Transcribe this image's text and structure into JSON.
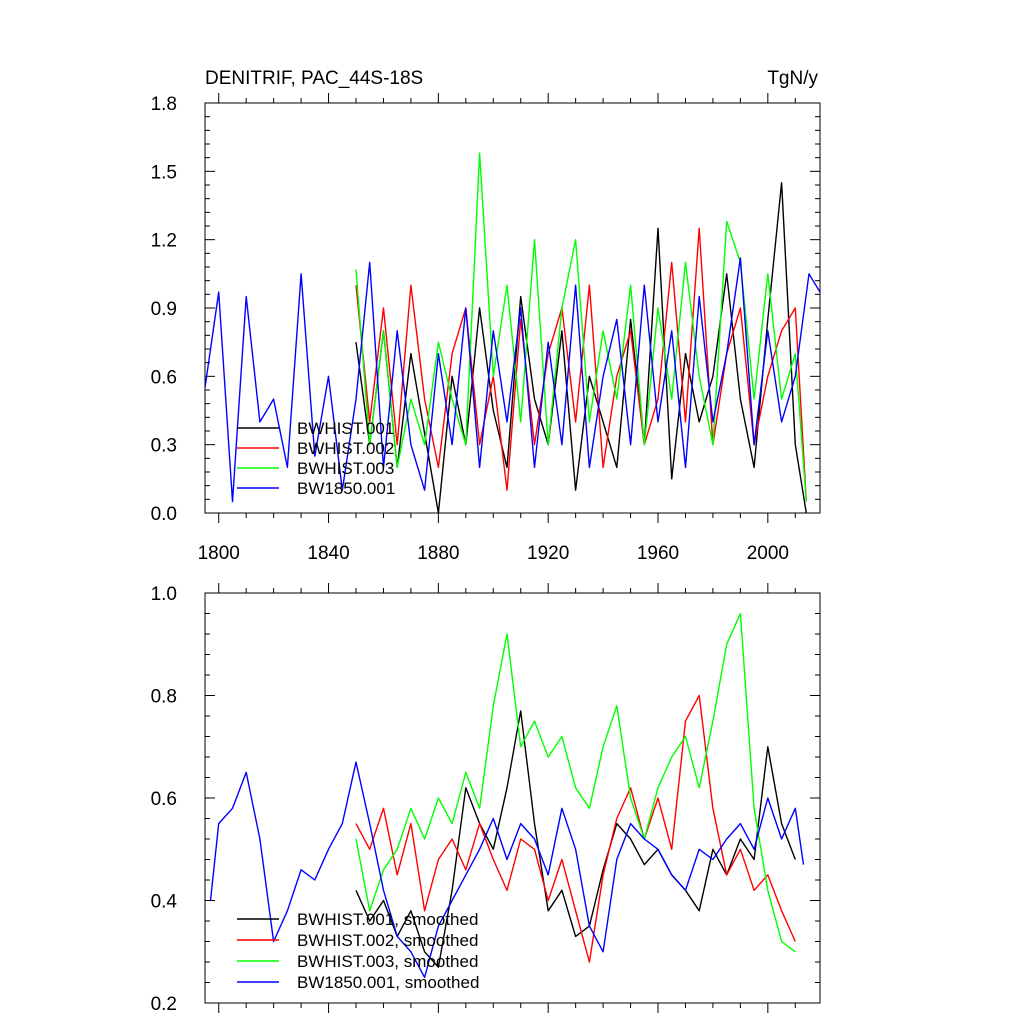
{
  "chart_data": [
    {
      "type": "line",
      "title": "DENITRIF, PAC_44S-18S",
      "units": "TgN/y",
      "xlim": [
        1795,
        2019
      ],
      "ylim": [
        0.0,
        1.8
      ],
      "xticks": [
        1800,
        1840,
        1880,
        1920,
        1960,
        2000
      ],
      "xtick_labels": [
        "1800",
        "1840",
        "1880",
        "1920",
        "1960",
        "2000"
      ],
      "yticks": [
        0.0,
        0.3,
        0.6,
        0.9,
        1.2,
        1.5,
        1.8
      ],
      "ytick_labels": [
        "0.0",
        "0.3",
        "0.6",
        "0.9",
        "1.2",
        "1.5",
        "1.8"
      ],
      "legend_position": "bottom-left",
      "series": [
        {
          "name": "BWHIST.001",
          "color": "#000000",
          "x": [
            1850,
            1855,
            1860,
            1865,
            1870,
            1875,
            1880,
            1885,
            1890,
            1895,
            1900,
            1905,
            1910,
            1915,
            1920,
            1925,
            1930,
            1935,
            1940,
            1945,
            1950,
            1955,
            1960,
            1965,
            1970,
            1975,
            1980,
            1985,
            1990,
            1995,
            2000,
            2005,
            2010,
            2014
          ],
          "values": [
            0.75,
            0.3,
            0.8,
            0.2,
            0.7,
            0.35,
            0.0,
            0.6,
            0.3,
            0.9,
            0.45,
            0.2,
            0.95,
            0.5,
            0.3,
            0.8,
            0.1,
            0.6,
            0.4,
            0.2,
            0.85,
            0.3,
            1.25,
            0.15,
            0.7,
            0.4,
            0.6,
            1.05,
            0.5,
            0.2,
            0.85,
            1.45,
            0.3,
            0.0
          ]
        },
        {
          "name": "BWHIST.002",
          "color": "#ff0000",
          "x": [
            1850,
            1855,
            1860,
            1865,
            1870,
            1875,
            1880,
            1885,
            1890,
            1895,
            1900,
            1905,
            1910,
            1915,
            1920,
            1925,
            1930,
            1935,
            1940,
            1945,
            1950,
            1955,
            1960,
            1965,
            1970,
            1975,
            1980,
            1985,
            1990,
            1995,
            2000,
            2005,
            2010,
            2014
          ],
          "values": [
            1.0,
            0.4,
            0.9,
            0.3,
            1.0,
            0.5,
            0.2,
            0.7,
            0.9,
            0.3,
            0.6,
            0.1,
            0.85,
            0.3,
            0.7,
            0.9,
            0.4,
            1.0,
            0.2,
            0.6,
            0.8,
            0.3,
            0.5,
            1.1,
            0.4,
            1.25,
            0.3,
            0.7,
            0.9,
            0.3,
            0.6,
            0.8,
            0.9,
            0.05
          ]
        },
        {
          "name": "BWHIST.003",
          "color": "#00ff00",
          "x": [
            1850,
            1855,
            1860,
            1865,
            1870,
            1875,
            1880,
            1885,
            1890,
            1895,
            1900,
            1905,
            1910,
            1915,
            1920,
            1925,
            1930,
            1935,
            1940,
            1945,
            1950,
            1955,
            1960,
            1965,
            1970,
            1975,
            1980,
            1985,
            1990,
            1995,
            2000,
            2005,
            2010,
            2014
          ],
          "values": [
            1.07,
            0.3,
            0.8,
            0.2,
            0.5,
            0.3,
            0.75,
            0.5,
            0.3,
            1.58,
            0.6,
            1.0,
            0.4,
            1.2,
            0.3,
            0.9,
            1.2,
            0.4,
            0.8,
            0.5,
            1.0,
            0.3,
            0.9,
            0.5,
            1.1,
            0.6,
            0.3,
            1.28,
            1.1,
            0.5,
            1.05,
            0.5,
            0.7,
            0.05
          ]
        },
        {
          "name": "BW1850.001",
          "color": "#0000ff",
          "x": [
            1795,
            1800,
            1805,
            1810,
            1815,
            1820,
            1825,
            1830,
            1835,
            1840,
            1845,
            1850,
            1855,
            1860,
            1865,
            1870,
            1875,
            1880,
            1885,
            1890,
            1895,
            1900,
            1905,
            1910,
            1915,
            1920,
            1925,
            1930,
            1935,
            1940,
            1945,
            1950,
            1955,
            1960,
            1965,
            1970,
            1975,
            1980,
            1985,
            1990,
            1995,
            2000,
            2005,
            2010,
            2015,
            2019
          ],
          "values": [
            0.55,
            0.97,
            0.05,
            0.95,
            0.4,
            0.5,
            0.2,
            1.05,
            0.25,
            0.6,
            0.1,
            0.5,
            1.1,
            0.2,
            0.8,
            0.3,
            0.1,
            0.7,
            0.3,
            0.9,
            0.2,
            0.8,
            0.4,
            0.9,
            0.2,
            0.75,
            0.3,
            1.0,
            0.2,
            0.6,
            0.85,
            0.3,
            1.0,
            0.4,
            0.8,
            0.2,
            0.95,
            0.4,
            0.7,
            1.12,
            0.3,
            0.8,
            0.4,
            0.6,
            1.05,
            0.97
          ]
        }
      ]
    },
    {
      "type": "line",
      "title": "",
      "xlim": [
        1795,
        2019
      ],
      "ylim": [
        0.2,
        1.0
      ],
      "yticks": [
        0.2,
        0.4,
        0.6,
        0.8,
        1.0
      ],
      "ytick_labels": [
        "0.2",
        "0.4",
        "0.6",
        "0.8",
        "1.0"
      ],
      "legend_position": "bottom-left",
      "series": [
        {
          "name": "BWHIST.001, smoothed",
          "color": "#000000",
          "x": [
            1850,
            1855,
            1860,
            1865,
            1870,
            1875,
            1880,
            1885,
            1890,
            1895,
            1900,
            1905,
            1910,
            1915,
            1920,
            1925,
            1930,
            1935,
            1940,
            1945,
            1950,
            1955,
            1960,
            1965,
            1970,
            1975,
            1980,
            1985,
            1990,
            1995,
            2000,
            2005,
            2010
          ],
          "values": [
            0.42,
            0.36,
            0.4,
            0.33,
            0.38,
            0.3,
            0.27,
            0.42,
            0.62,
            0.55,
            0.5,
            0.62,
            0.77,
            0.55,
            0.38,
            0.42,
            0.33,
            0.35,
            0.46,
            0.55,
            0.52,
            0.47,
            0.5,
            0.45,
            0.42,
            0.38,
            0.5,
            0.45,
            0.52,
            0.48,
            0.7,
            0.55,
            0.48
          ]
        },
        {
          "name": "BWHIST.002, smoothed",
          "color": "#ff0000",
          "x": [
            1850,
            1855,
            1860,
            1865,
            1870,
            1875,
            1880,
            1885,
            1890,
            1895,
            1900,
            1905,
            1910,
            1915,
            1920,
            1925,
            1930,
            1935,
            1940,
            1945,
            1950,
            1955,
            1960,
            1965,
            1970,
            1975,
            1980,
            1985,
            1990,
            1995,
            2000,
            2005,
            2010
          ],
          "values": [
            0.55,
            0.5,
            0.58,
            0.45,
            0.55,
            0.38,
            0.48,
            0.52,
            0.46,
            0.55,
            0.48,
            0.42,
            0.52,
            0.5,
            0.4,
            0.48,
            0.38,
            0.28,
            0.45,
            0.56,
            0.62,
            0.52,
            0.6,
            0.5,
            0.75,
            0.8,
            0.58,
            0.45,
            0.5,
            0.42,
            0.45,
            0.38,
            0.32
          ]
        },
        {
          "name": "BWHIST.003, smoothed",
          "color": "#00ff00",
          "x": [
            1850,
            1855,
            1860,
            1865,
            1870,
            1875,
            1880,
            1885,
            1890,
            1895,
            1900,
            1905,
            1910,
            1915,
            1920,
            1925,
            1930,
            1935,
            1940,
            1945,
            1950,
            1955,
            1960,
            1965,
            1970,
            1975,
            1980,
            1985,
            1990,
            1995,
            2000,
            2005,
            2010
          ],
          "values": [
            0.52,
            0.38,
            0.46,
            0.5,
            0.58,
            0.52,
            0.6,
            0.55,
            0.65,
            0.58,
            0.78,
            0.92,
            0.7,
            0.75,
            0.68,
            0.72,
            0.62,
            0.58,
            0.7,
            0.78,
            0.6,
            0.52,
            0.62,
            0.68,
            0.72,
            0.62,
            0.75,
            0.9,
            0.96,
            0.58,
            0.42,
            0.32,
            0.3
          ]
        },
        {
          "name": "BW1850.001, smoothed",
          "color": "#0000ff",
          "x": [
            1797,
            1800,
            1805,
            1810,
            1815,
            1820,
            1825,
            1830,
            1835,
            1840,
            1845,
            1850,
            1855,
            1860,
            1865,
            1870,
            1875,
            1880,
            1885,
            1890,
            1895,
            1900,
            1905,
            1910,
            1915,
            1920,
            1925,
            1930,
            1935,
            1940,
            1945,
            1950,
            1955,
            1960,
            1965,
            1970,
            1975,
            1980,
            1985,
            1990,
            1995,
            2000,
            2005,
            2010,
            2013
          ],
          "values": [
            0.4,
            0.55,
            0.58,
            0.65,
            0.52,
            0.32,
            0.38,
            0.46,
            0.44,
            0.5,
            0.55,
            0.67,
            0.55,
            0.42,
            0.33,
            0.3,
            0.25,
            0.35,
            0.4,
            0.45,
            0.5,
            0.56,
            0.48,
            0.55,
            0.52,
            0.45,
            0.58,
            0.5,
            0.35,
            0.3,
            0.48,
            0.55,
            0.52,
            0.5,
            0.45,
            0.42,
            0.5,
            0.48,
            0.52,
            0.55,
            0.5,
            0.6,
            0.52,
            0.58,
            0.47
          ]
        }
      ]
    }
  ]
}
